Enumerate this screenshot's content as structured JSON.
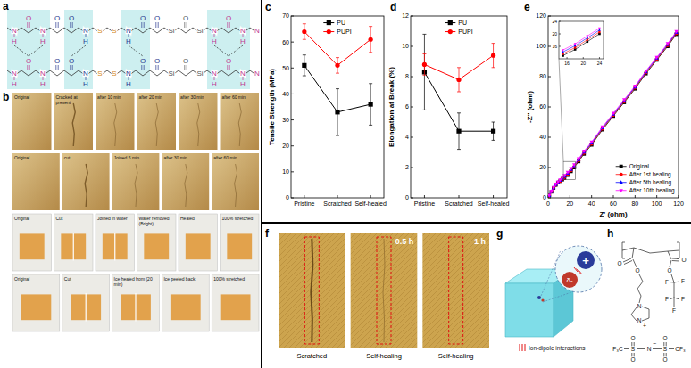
{
  "figure": {
    "panel_letters": [
      "a",
      "b",
      "c",
      "d",
      "e",
      "f",
      "g",
      "h"
    ],
    "a": {
      "units": [
        {
          "text": "N",
          "color": "#c0398f"
        },
        {
          "text": "H",
          "color": "#c0398f"
        },
        {
          "text": "O",
          "color": "#c0398f"
        },
        {
          "text": "N",
          "color": "#c0398f"
        },
        {
          "text": "H",
          "color": "#c0398f"
        },
        {
          "text": "O",
          "color": "#2b3a8f"
        },
        {
          "text": "O",
          "color": "#2b3a8f"
        },
        {
          "text": "N",
          "color": "#2b3a8f"
        },
        {
          "text": "H",
          "color": "#2b3a8f"
        },
        {
          "text": "S",
          "color": "#d4881a"
        },
        {
          "text": "S",
          "color": "#d4881a"
        },
        {
          "text": "N",
          "color": "#2b3a8f"
        },
        {
          "text": "H",
          "color": "#2b3a8f"
        },
        {
          "text": "O",
          "color": "#2b3a8f"
        },
        {
          "text": "O",
          "color": "#2b3a8f"
        },
        {
          "text": "Si",
          "color": "#555555"
        },
        {
          "text": "O",
          "color": "#555555"
        },
        {
          "text": "Si",
          "color": "#555555"
        },
        {
          "text": "N",
          "color": "#c0398f"
        },
        {
          "text": "H",
          "color": "#c0398f"
        },
        {
          "text": "O",
          "color": "#c0398f"
        },
        {
          "text": "N",
          "color": "#c0398f"
        },
        {
          "text": "H",
          "color": "#c0398f"
        },
        {
          "text": "N",
          "color": "#c0398f"
        }
      ]
    },
    "b": {
      "rows": [
        [
          "Original",
          "Cracked at present",
          "after 10 min",
          "after 20 min",
          "after 30 min",
          "after 60 min"
        ],
        [
          "Original",
          "cut",
          "Joined 5 min",
          "after 30 min",
          "after 60 min"
        ],
        [
          "Original",
          "Cut",
          "Joined in water",
          "Water removed (Bright)",
          "Healed",
          "100% stretched"
        ],
        [
          "Original",
          "Cut",
          "Ice healed from (20 min)",
          "Ice peeled back",
          "100% stretched"
        ]
      ]
    },
    "f": {
      "captions": [
        "Scratched",
        "Self-healing",
        "Self-healing"
      ],
      "times": [
        "0.5 h",
        "1 h"
      ]
    },
    "g": {
      "cation": "+",
      "anion": "δ-",
      "label": "Ion-dipole interactions"
    },
    "h": {
      "atoms": [
        "O",
        "O",
        "O",
        "O",
        "F",
        "F",
        "F",
        "F",
        "F",
        "N",
        "N",
        "+",
        "F₃C",
        "S",
        "O",
        "O",
        "N",
        "−",
        "S",
        "O",
        "O",
        "CF₃"
      ]
    }
  },
  "chart_data": [
    {
      "type": "line",
      "ylabel": "Tensile Strength (MPa)",
      "categories": [
        "Pristine",
        "Scratched",
        "Self-healed"
      ],
      "ylim": [
        0,
        70
      ],
      "yticks": [
        0,
        10,
        20,
        30,
        40,
        50,
        60,
        70
      ],
      "legend": "upper center",
      "series": [
        {
          "name": "PU",
          "color": "#000000",
          "marker": "square",
          "values": [
            51,
            33,
            36
          ],
          "errors": [
            4,
            9,
            8
          ]
        },
        {
          "name": "PUPI",
          "color": "#ff0000",
          "marker": "circle",
          "values": [
            64,
            51,
            61
          ],
          "errors": [
            3,
            3,
            5
          ]
        }
      ]
    },
    {
      "type": "line",
      "ylabel": "Elongation at Break (%)",
      "categories": [
        "Pristine",
        "Scratched",
        "Self-healed"
      ],
      "ylim": [
        0,
        12
      ],
      "yticks": [
        0,
        2,
        4,
        6,
        8,
        10,
        12
      ],
      "legend": "upper center",
      "series": [
        {
          "name": "PU",
          "color": "#000000",
          "marker": "square",
          "values": [
            8.3,
            4.4,
            4.4
          ],
          "errors": [
            2.5,
            1.2,
            0.6
          ]
        },
        {
          "name": "PUPI",
          "color": "#ff0000",
          "marker": "circle",
          "values": [
            8.8,
            7.8,
            9.4
          ],
          "errors": [
            0.7,
            0.8,
            0.8
          ]
        }
      ]
    },
    {
      "type": "line",
      "xlabel": "Z' (ohm)",
      "ylabel": "-Z'' (ohm)",
      "xlim": [
        0,
        120
      ],
      "xticks": [
        0,
        20,
        40,
        60,
        80,
        100,
        120
      ],
      "ylim": [
        0,
        120
      ],
      "yticks": [
        0,
        20,
        40,
        60,
        80,
        100,
        120
      ],
      "legend": "lower right",
      "x": [
        1,
        3,
        5,
        7,
        9,
        11,
        13,
        15,
        18,
        21,
        24,
        28,
        33,
        40,
        50,
        60,
        70,
        80,
        90,
        100,
        110,
        118
      ],
      "series": [
        {
          "name": "Original",
          "color": "#000000",
          "marker": "square",
          "values": [
            1.5,
            4,
            6.5,
            8.5,
            10,
            11,
            12,
            13,
            15,
            17.5,
            20,
            24,
            29,
            35,
            45,
            54,
            63,
            72,
            82,
            91,
            100,
            108
          ]
        },
        {
          "name": "After 1st healing",
          "color": "#ff0000",
          "marker": "circle",
          "values": [
            1.5,
            4,
            6.5,
            8.5,
            10,
            11,
            12.5,
            13.6,
            15.6,
            18.1,
            20.6,
            24.6,
            29.6,
            35.6,
            45.6,
            54.6,
            63.6,
            72.6,
            82.6,
            91.6,
            100.6,
            108.6
          ]
        },
        {
          "name": "After 5th healing",
          "color": "#0000ff",
          "marker": "triangle",
          "values": [
            1.5,
            4.2,
            6.7,
            8.8,
            10.3,
            11.5,
            13,
            14.2,
            16.2,
            18.7,
            21.2,
            25.2,
            30.2,
            36.2,
            46.2,
            55.2,
            64.2,
            73.2,
            83.2,
            92.2,
            101.2,
            109.2
          ]
        },
        {
          "name": "After 10th healing",
          "color": "#ff00ff",
          "marker": "triangle-down",
          "values": [
            1.6,
            4.3,
            6.9,
            9,
            10.6,
            11.8,
            13.4,
            14.8,
            16.8,
            19.3,
            21.8,
            25.8,
            30.8,
            36.8,
            46.8,
            55.8,
            64.8,
            73.8,
            83.8,
            92.8,
            101.8,
            109.8
          ]
        }
      ]
    },
    {
      "type": "line",
      "xlim": [
        14,
        25
      ],
      "xticks": [
        16,
        20,
        24
      ],
      "ylim": [
        12,
        24
      ],
      "yticks": [
        16,
        20,
        24
      ],
      "x": [
        15,
        18,
        21,
        24
      ],
      "series": [
        {
          "color": "#000000",
          "marker": "square",
          "values": [
            13,
            15,
            17.5,
            20
          ]
        },
        {
          "color": "#ff0000",
          "marker": "circle",
          "values": [
            13.6,
            15.6,
            18.1,
            20.6
          ]
        },
        {
          "color": "#0000ff",
          "marker": "triangle",
          "values": [
            14.2,
            16.2,
            18.7,
            21.2
          ]
        },
        {
          "color": "#ff00ff",
          "marker": "triangle-down",
          "values": [
            14.8,
            16.8,
            19.3,
            21.8
          ]
        }
      ]
    }
  ]
}
